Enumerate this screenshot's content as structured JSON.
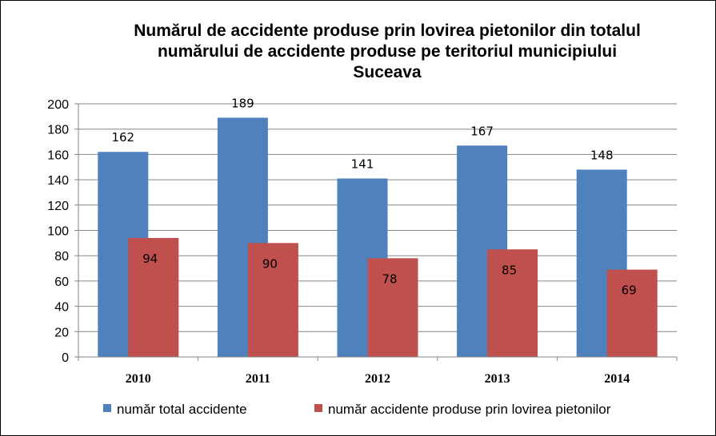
{
  "chart_data": {
    "type": "bar",
    "title": [
      "Numărul de accidente produse prin lovirea pietonilor  din totalul",
      "numărului de accidente produse pe teritoriul municipiului",
      "Suceava"
    ],
    "categories": [
      "2010",
      "2011",
      "2012",
      "2013",
      "2014"
    ],
    "series": [
      {
        "name": "număr total accidente",
        "color": "#4F81BD",
        "values": [
          162,
          189,
          141,
          167,
          148
        ]
      },
      {
        "name": "număr accidente produse prin lovirea pietonilor",
        "color": "#C0504D",
        "values": [
          94,
          90,
          78,
          85,
          69
        ]
      }
    ],
    "ylim": [
      0,
      200
    ],
    "yticks": [
      0,
      20,
      40,
      60,
      80,
      100,
      120,
      140,
      160,
      180,
      200
    ],
    "grid": true,
    "legend_position": "bottom"
  }
}
